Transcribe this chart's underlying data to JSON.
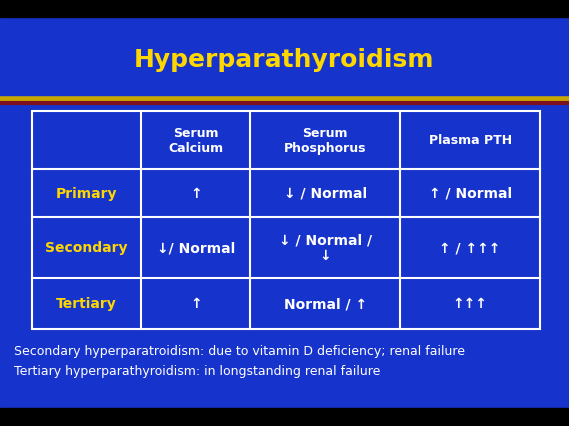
{
  "title": "Hyperparathyroidism",
  "title_color": "#FFD700",
  "bg_color": "#1633CC",
  "header_text_color": "#FFFFFF",
  "row_label_color": "#FFD700",
  "cell_text_color": "#FFFFFF",
  "border_color": "#FFFFFF",
  "footer_text_color": "#FFFFFF",
  "sep_line1_color": "#C8A800",
  "sep_line2_color": "#7B1020",
  "col_headers": [
    "Serum\nCalcium",
    "Serum\nPhosphorus",
    "Plasma PTH"
  ],
  "row_labels": [
    "Primary",
    "Secondary",
    "Tertiary"
  ],
  "table_data": [
    [
      "↑",
      "↓ / Normal",
      "↑ / Normal"
    ],
    [
      "↓/ Normal",
      "↓ / Normal /\n↓",
      "↑ / ↑↑↑"
    ],
    [
      "↑",
      "Normal / ↑",
      "↑↑↑"
    ]
  ],
  "footer_lines": [
    "Secondary hyperparatroidism: due to vitamin D deficiency; renal failure",
    "Tertiary hyperparathyroidism: in longstanding renal failure"
  ],
  "title_fontsize": 18,
  "header_fontsize": 9,
  "cell_fontsize": 10,
  "footer_fontsize": 9
}
